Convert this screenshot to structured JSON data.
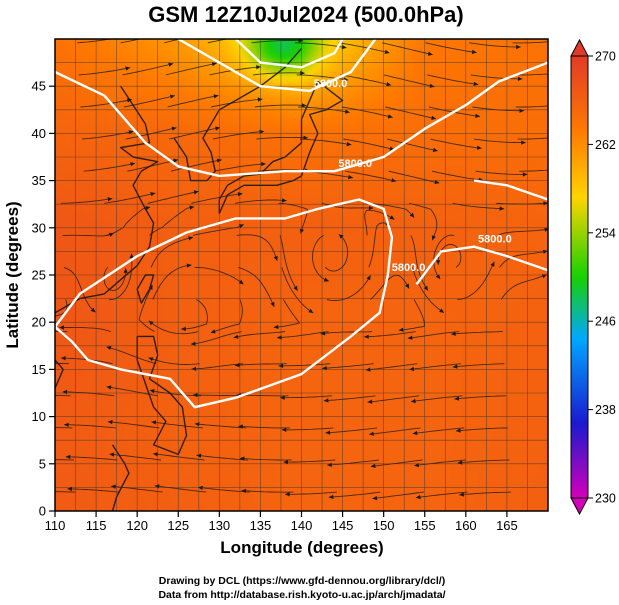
{
  "chart_data": {
    "type": "heatmap",
    "title": "GSM 12Z10Jul2024 (500.0hPa)",
    "xlabel": "Longitude (degrees)",
    "ylabel": "Latitude  (degrees)",
    "xlim": [
      110,
      170
    ],
    "ylim": [
      0,
      50
    ],
    "x_ticks": [
      "110",
      "115",
      "120",
      "125",
      "130",
      "135",
      "140",
      "145",
      "150",
      "155",
      "160",
      "165"
    ],
    "y_ticks": [
      "0",
      "5",
      "10",
      "15",
      "20",
      "25",
      "30",
      "35",
      "40",
      "45"
    ],
    "grid": true,
    "colorbar": {
      "min": 230,
      "max": 270,
      "ticks": [
        "230",
        "238",
        "246",
        "254",
        "262",
        "270"
      ],
      "colors": [
        "#d400b8",
        "#1a1ad0",
        "#00a8ff",
        "#19d000",
        "#ffd400",
        "#ff7a00",
        "#e23a28"
      ]
    },
    "field_grid": {
      "lons": [
        110,
        125,
        140,
        155,
        170
      ],
      "lats": [
        0,
        10,
        20,
        30,
        40,
        50
      ],
      "values": [
        [
          266.5,
          266.0,
          265.5,
          265.5,
          266.0
        ],
        [
          266.5,
          265.8,
          265.5,
          265.5,
          265.8
        ],
        [
          267.0,
          266.0,
          265.5,
          265.5,
          265.8
        ],
        [
          267.0,
          266.0,
          266.0,
          265.8,
          265.5
        ],
        [
          265.5,
          265.0,
          264.0,
          264.5,
          264.5
        ],
        [
          264.0,
          261.0,
          256.0,
          263.5,
          264.0
        ]
      ]
    },
    "contours": [
      {
        "label": "5800.0",
        "points": [
          [
            110,
            19.5
          ],
          [
            113,
            23
          ],
          [
            120,
            27
          ],
          [
            126,
            29.5
          ],
          [
            132,
            31
          ],
          [
            138,
            31
          ],
          [
            142,
            32
          ],
          [
            147,
            33
          ],
          [
            150,
            32
          ],
          [
            151,
            29
          ],
          [
            150.5,
            25
          ],
          [
            149.5,
            21
          ],
          [
            146,
            18.5
          ],
          [
            140,
            14.5
          ],
          [
            132,
            12
          ],
          [
            127,
            11
          ],
          [
            124,
            14
          ],
          [
            118,
            15
          ],
          [
            114,
            16
          ],
          [
            112,
            18
          ],
          [
            110,
            19.5
          ]
        ]
      },
      {
        "label": "5800.0",
        "points": [
          [
            154,
            24
          ],
          [
            157,
            27.5
          ],
          [
            161,
            28
          ],
          [
            165,
            27
          ],
          [
            170,
            25.5
          ]
        ]
      },
      {
        "label": "5800.0",
        "points": [
          [
            110,
            46.5
          ],
          [
            116,
            44
          ],
          [
            121,
            39
          ],
          [
            125,
            36.5
          ],
          [
            130,
            35.5
          ],
          [
            138,
            36
          ],
          [
            144,
            36
          ],
          [
            150,
            37.5
          ],
          [
            155,
            40.5
          ],
          [
            160,
            43
          ],
          [
            164,
            45.5
          ],
          [
            170,
            47.5
          ]
        ]
      },
      {
        "label": "5800.0",
        "points": [
          [
            125,
            50
          ],
          [
            130,
            47.5
          ],
          [
            135,
            45
          ],
          [
            141,
            44.5
          ],
          [
            146,
            46.5
          ],
          [
            149,
            50
          ]
        ]
      },
      {
        "label": "",
        "points": [
          [
            161,
            35
          ],
          [
            165,
            34.5
          ],
          [
            170,
            33
          ]
        ]
      },
      {
        "label": "",
        "points": [
          [
            132,
            50
          ],
          [
            135,
            47.5
          ],
          [
            140,
            47
          ],
          [
            144,
            48.5
          ],
          [
            145,
            50
          ]
        ]
      }
    ]
  },
  "credits": {
    "line1": "Drawing by DCL (https://www.gfd-dennou.org/library/dcl/)",
    "line2": "Data from http://database.rish.kyoto-u.ac.jp/arch/jmadata/"
  }
}
